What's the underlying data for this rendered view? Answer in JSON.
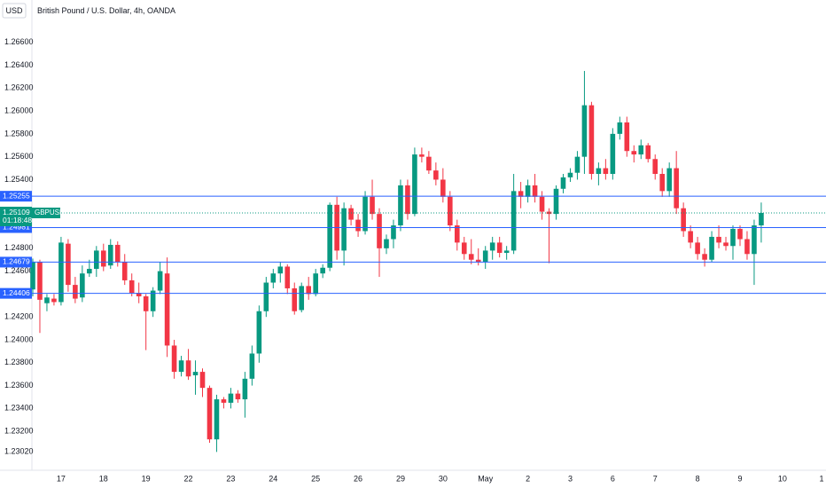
{
  "chart_data": {
    "type": "candlestick",
    "title": "British Pound / U.S. Dollar, 4h, OANDA",
    "currency": "USD",
    "symbol": "GBPUSD",
    "countdown": "01:18:48",
    "up_color": "#089981",
    "down_color": "#f23645",
    "level_color": "#2962ff",
    "categories": [
      null,
      null,
      null,
      null,
      "17",
      null,
      null,
      null,
      null,
      null,
      "18",
      null,
      null,
      null,
      null,
      null,
      "19",
      null,
      null,
      null,
      null,
      null,
      "22",
      null,
      null,
      null,
      null,
      null,
      "23",
      null,
      null,
      null,
      null,
      null,
      "24",
      null,
      null,
      null,
      null,
      null,
      "25",
      null,
      null,
      null,
      null,
      null,
      "26",
      null,
      null,
      null,
      null,
      null,
      "29",
      null,
      null,
      null,
      null,
      null,
      "30",
      null,
      null,
      null,
      null,
      null,
      "May",
      null,
      null,
      null,
      null,
      null,
      "2",
      null,
      null,
      null,
      null,
      null,
      "3",
      null,
      null,
      null,
      null,
      null,
      "6",
      null,
      null,
      null,
      null,
      null,
      "7",
      null,
      null,
      null,
      null,
      null,
      "8",
      null,
      null,
      null,
      null,
      null,
      "9",
      null,
      null,
      null,
      null,
      null,
      "10",
      null,
      null,
      null,
      null,
      null,
      "1"
    ],
    "open": [
      1.2444,
      1.2468,
      1.2432,
      1.2436,
      1.2433,
      1.2484,
      1.2448,
      1.2437,
      1.2458,
      1.2462,
      1.2478,
      1.2465,
      1.2483,
      1.2468,
      1.2452,
      1.2441,
      1.2438,
      1.2425,
      1.2443,
      1.2458,
      1.2395,
      1.2372,
      1.2382,
      1.2369,
      1.2372,
      1.2358,
      1.2313,
      1.2348,
      1.2345,
      1.2353,
      1.2348,
      1.2366,
      1.2388,
      1.2425,
      1.245,
      1.2458,
      1.2464,
      1.2445,
      1.2426,
      1.2447,
      1.244,
      1.2458,
      1.2463,
      1.2518,
      1.2478,
      1.2515,
      1.2505,
      1.2495,
      1.2525,
      1.251,
      1.248,
      1.2488,
      1.25,
      1.2535,
      1.251,
      1.2562,
      1.256,
      1.2548,
      1.254,
      1.2525,
      1.25,
      1.2485,
      1.2475,
      1.247,
      1.2468,
      1.2478,
      1.2485,
      1.2476,
      1.2478,
      1.253,
      1.2525,
      1.2535,
      1.2525,
      1.2512,
      1.251,
      1.2532,
      1.2542,
      1.2546,
      1.256,
      1.2605,
      1.2545,
      1.255,
      1.2545,
      1.258,
      1.259,
      1.2565,
      1.2562,
      1.257,
      1.2558,
      1.2545,
      1.253,
      1.255,
      1.2515,
      1.2495,
      1.2485,
      1.2475,
      1.247,
      1.249,
      1.2485,
      1.2482,
      1.2497,
      1.2488,
      1.2475,
      1.25,
      null,
      null,
      null,
      null,
      null,
      null,
      null,
      null,
      null
    ],
    "high": [
      1.2471,
      1.247,
      1.244,
      1.244,
      1.249,
      1.2488,
      1.2455,
      1.2465,
      1.247,
      1.2482,
      1.2484,
      1.2488,
      1.2486,
      1.2475,
      1.2458,
      1.245,
      1.244,
      1.2446,
      1.2468,
      1.2472,
      1.24,
      1.2386,
      1.2392,
      1.2382,
      1.2375,
      1.236,
      1.2352,
      1.235,
      1.2358,
      1.2356,
      1.2372,
      1.2395,
      1.243,
      1.2455,
      1.2462,
      1.2468,
      1.2466,
      1.245,
      1.245,
      1.2455,
      1.2462,
      1.2466,
      1.252,
      1.2525,
      1.252,
      1.2518,
      1.251,
      1.253,
      1.254,
      1.2515,
      1.2492,
      1.2505,
      1.254,
      1.254,
      1.2568,
      1.2568,
      1.2565,
      1.2555,
      1.255,
      1.253,
      1.2505,
      1.249,
      1.2488,
      1.248,
      1.2482,
      1.249,
      1.249,
      1.2482,
      1.2545,
      1.2538,
      1.254,
      1.2545,
      1.253,
      1.2515,
      1.2535,
      1.2545,
      1.255,
      1.2565,
      1.2635,
      1.2608,
      1.2555,
      1.2558,
      1.2585,
      1.2595,
      1.2595,
      1.257,
      1.2575,
      1.2572,
      1.2562,
      1.255,
      1.2555,
      1.2565,
      1.252,
      1.25,
      1.249,
      1.248,
      1.2495,
      1.25,
      1.249,
      1.25,
      1.25,
      1.2495,
      1.2505,
      1.252,
      null,
      null,
      null,
      null,
      null,
      null,
      null,
      null,
      null
    ],
    "low": [
      1.2438,
      1.2406,
      1.2425,
      1.243,
      1.243,
      1.2442,
      1.2432,
      1.2433,
      1.2455,
      1.2455,
      1.246,
      1.2462,
      1.2464,
      1.2448,
      1.2438,
      1.2432,
      1.2391,
      1.242,
      1.244,
      1.2385,
      1.2366,
      1.2368,
      1.2365,
      1.2352,
      1.235,
      1.231,
      1.2302,
      1.234,
      1.234,
      1.2345,
      1.2332,
      1.236,
      1.238,
      1.242,
      1.2445,
      1.245,
      1.244,
      1.2422,
      1.2424,
      1.2435,
      1.2438,
      1.2454,
      1.246,
      1.247,
      1.2465,
      1.25,
      1.249,
      1.2492,
      1.2505,
      1.2455,
      1.2475,
      1.248,
      1.2495,
      1.2505,
      1.2508,
      1.2555,
      1.2545,
      1.2535,
      1.252,
      1.2495,
      1.2478,
      1.247,
      1.2466,
      1.2465,
      1.2462,
      1.247,
      1.2472,
      1.247,
      1.2475,
      1.2515,
      1.252,
      1.252,
      1.2505,
      1.2467,
      1.2505,
      1.2528,
      1.2538,
      1.254,
      1.2545,
      1.254,
      1.2535,
      1.254,
      1.254,
      1.2575,
      1.256,
      1.2555,
      1.2558,
      1.2555,
      1.254,
      1.2525,
      1.2525,
      1.251,
      1.249,
      1.248,
      1.247,
      1.2464,
      1.2468,
      1.248,
      1.2478,
      1.247,
      1.2482,
      1.247,
      1.2448,
      1.2485,
      null,
      null,
      null,
      null,
      null,
      null,
      null,
      null,
      null
    ],
    "close": [
      1.2468,
      1.2435,
      1.2437,
      1.2433,
      1.2485,
      1.2448,
      1.2436,
      1.2458,
      1.2462,
      1.2478,
      1.2464,
      1.2483,
      1.2468,
      1.2452,
      1.2441,
      1.2438,
      1.2425,
      1.2443,
      1.246,
      1.2395,
      1.2372,
      1.2382,
      1.2368,
      1.2372,
      1.2358,
      1.2313,
      1.2348,
      1.2345,
      1.2353,
      1.2348,
      1.2366,
      1.2388,
      1.2425,
      1.245,
      1.2458,
      1.2464,
      1.2445,
      1.2425,
      1.2447,
      1.244,
      1.2458,
      1.2463,
      1.2518,
      1.2478,
      1.2515,
      1.2505,
      1.2495,
      1.2525,
      1.251,
      1.248,
      1.2488,
      1.25,
      1.2535,
      1.251,
      1.2562,
      1.256,
      1.2548,
      1.254,
      1.2525,
      1.25,
      1.2485,
      1.2475,
      1.247,
      1.2468,
      1.2478,
      1.2485,
      1.2476,
      1.2478,
      1.253,
      1.2525,
      1.2535,
      1.2525,
      1.2512,
      1.251,
      1.2532,
      1.2542,
      1.2546,
      1.256,
      1.2605,
      1.2545,
      1.255,
      1.2545,
      1.258,
      1.259,
      1.2565,
      1.2562,
      1.257,
      1.2558,
      1.2545,
      1.253,
      1.255,
      1.2515,
      1.2495,
      1.2485,
      1.2475,
      1.247,
      1.249,
      1.2485,
      1.2482,
      1.2497,
      1.2488,
      1.2475,
      1.25,
      1.25109,
      null,
      null,
      null,
      null,
      null,
      null,
      null,
      null,
      null
    ],
    "last_price": {
      "value": 1.25109,
      "label": "1.25109"
    },
    "levels": [
      {
        "value": 1.25255,
        "label": "1.25255"
      },
      {
        "value": 1.24981,
        "label": "1.24981"
      },
      {
        "value": 1.24679,
        "label": "1.24679"
      },
      {
        "value": 1.24406,
        "label": "1.24406"
      }
    ],
    "ylim": [
      1.2286,
      1.2697
    ],
    "yticks": [
      {
        "value": 1.266,
        "label": "1.26600"
      },
      {
        "value": 1.264,
        "label": "1.26400"
      },
      {
        "value": 1.262,
        "label": "1.26200"
      },
      {
        "value": 1.26,
        "label": "1.26000"
      },
      {
        "value": 1.258,
        "label": "1.25800"
      },
      {
        "value": 1.256,
        "label": "1.25600"
      },
      {
        "value": 1.254,
        "label": "1.25400"
      },
      {
        "value": 1.248,
        "label": "1.24800"
      },
      {
        "value": 1.246,
        "label": "1.24600"
      },
      {
        "value": 1.242,
        "label": "1.24200"
      },
      {
        "value": 1.24,
        "label": "1.24000"
      },
      {
        "value": 1.238,
        "label": "1.23800"
      },
      {
        "value": 1.236,
        "label": "1.23600"
      },
      {
        "value": 1.234,
        "label": "1.23400"
      },
      {
        "value": 1.232,
        "label": "1.23200"
      },
      {
        "value": 1.2302,
        "label": "1.23020"
      }
    ]
  }
}
